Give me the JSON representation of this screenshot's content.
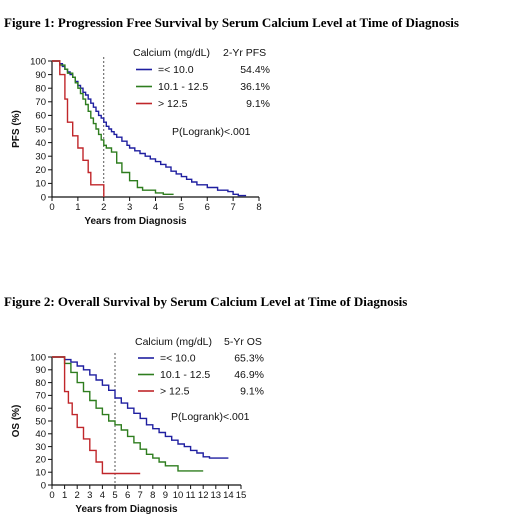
{
  "chart_data": [
    {
      "type": "line",
      "title": "Figure 1: Progression Free Survival by Serum Calcium Level at Time of Diagnosis",
      "xlabel": "Years from Diagnosis",
      "ylabel": "PFS (%)",
      "xlim": [
        0,
        8
      ],
      "ylim": [
        0,
        100
      ],
      "xticks": [
        "0",
        "1",
        "2",
        "3",
        "4",
        "5",
        "6",
        "7",
        "8"
      ],
      "yticks": [
        "0",
        "10",
        "20",
        "30",
        "40",
        "50",
        "60",
        "70",
        "80",
        "90",
        "100"
      ],
      "reference_line_x": 2,
      "legend_header": "Calcium (mg/dL)",
      "legend_value_header": "2-Yr PFS",
      "annotation": "P(Logrank)<.001",
      "series": [
        {
          "name": "=< 10.0",
          "stat": "54.4%",
          "color": "#1f1fa0",
          "x": [
            0,
            0.3,
            0.4,
            0.5,
            0.6,
            0.7,
            0.8,
            0.9,
            1.0,
            1.1,
            1.2,
            1.3,
            1.4,
            1.5,
            1.6,
            1.7,
            1.8,
            1.9,
            2.0,
            2.1,
            2.2,
            2.3,
            2.4,
            2.5,
            2.7,
            2.9,
            3.0,
            3.2,
            3.4,
            3.6,
            3.8,
            4.0,
            4.2,
            4.4,
            4.6,
            4.8,
            5.0,
            5.2,
            5.4,
            5.6,
            6.0,
            6.4,
            6.8,
            7.0,
            7.2,
            7.5
          ],
          "y": [
            100,
            98,
            96,
            94,
            92,
            90,
            88,
            85,
            82,
            80,
            77,
            75,
            72,
            69,
            66,
            63,
            60,
            58,
            55,
            52,
            50,
            48,
            46,
            44,
            41,
            38,
            36,
            34,
            32,
            30,
            28,
            26,
            24,
            22,
            19,
            17,
            15,
            13,
            11,
            9,
            7,
            5,
            4,
            2,
            1,
            1
          ]
        },
        {
          "name": "10.1 - 12.5",
          "stat": "36.1%",
          "color": "#2e7d1e",
          "x": [
            0,
            0.3,
            0.5,
            0.6,
            0.8,
            0.9,
            1.0,
            1.1,
            1.2,
            1.3,
            1.4,
            1.5,
            1.6,
            1.7,
            1.8,
            1.9,
            2.0,
            2.1,
            2.3,
            2.5,
            2.7,
            3.0,
            3.3,
            3.5,
            4.0,
            4.3,
            4.7
          ],
          "y": [
            100,
            97,
            94,
            91,
            88,
            84,
            80,
            76,
            72,
            68,
            63,
            58,
            54,
            50,
            46,
            42,
            38,
            36,
            33,
            25,
            18,
            12,
            7,
            5,
            3,
            2,
            2
          ]
        },
        {
          "name": "> 12.5",
          "stat": "9.1%",
          "color": "#c0262a",
          "x": [
            0,
            0.3,
            0.5,
            0.6,
            0.8,
            1.0,
            1.2,
            1.4,
            1.5,
            1.7,
            2.0
          ],
          "y": [
            100,
            90,
            72,
            55,
            45,
            36,
            27,
            18,
            9,
            9,
            0
          ]
        }
      ]
    },
    {
      "type": "line",
      "title": "Figure 2: Overall Survival by Serum Calcium Level at Time of Diagnosis",
      "xlabel": "Years from Diagnosis",
      "ylabel": "OS (%)",
      "xlim": [
        0,
        15
      ],
      "ylim": [
        0,
        100
      ],
      "xticks": [
        "0",
        "1",
        "2",
        "3",
        "4",
        "5",
        "6",
        "7",
        "8",
        "9",
        "10",
        "11",
        "12",
        "13",
        "14",
        "15"
      ],
      "yticks": [
        "0",
        "10",
        "20",
        "30",
        "40",
        "50",
        "60",
        "70",
        "80",
        "90",
        "100"
      ],
      "reference_line_x": 5,
      "legend_header": "Calcium (mg/dL)",
      "legend_value_header": "5-Yr OS",
      "annotation": "P(Logrank)<.001",
      "series": [
        {
          "name": "=< 10.0",
          "stat": "65.3%",
          "color": "#1f1fa0",
          "x": [
            0,
            1.0,
            1.5,
            2.0,
            2.5,
            3.0,
            3.5,
            4.0,
            4.5,
            5.0,
            5.5,
            6.0,
            6.5,
            7.0,
            7.5,
            8.0,
            8.5,
            9.0,
            9.5,
            10.0,
            10.5,
            11.0,
            11.5,
            12.0,
            12.5,
            13.0,
            14.0
          ],
          "y": [
            100,
            98,
            96,
            93,
            90,
            86,
            82,
            78,
            74,
            68,
            64,
            60,
            56,
            52,
            47,
            44,
            41,
            38,
            35,
            32,
            30,
            27,
            25,
            22,
            21,
            21,
            21
          ]
        },
        {
          "name": "10.1 - 12.5",
          "stat": "46.9%",
          "color": "#2e7d1e",
          "x": [
            0,
            1.0,
            1.5,
            2.0,
            2.5,
            3.0,
            3.5,
            4.0,
            4.5,
            5.0,
            5.5,
            6.0,
            6.5,
            7.0,
            7.5,
            8.0,
            8.5,
            9.0,
            10.0,
            11.0,
            12.0
          ],
          "y": [
            100,
            95,
            88,
            80,
            73,
            66,
            60,
            55,
            50,
            47,
            43,
            38,
            33,
            28,
            24,
            21,
            18,
            15,
            11,
            11,
            11
          ]
        },
        {
          "name": "> 12.5",
          "stat": "9.1%",
          "color": "#c0262a",
          "x": [
            0,
            1.0,
            1.3,
            1.6,
            2.0,
            2.5,
            3.0,
            3.5,
            4.0,
            7.0
          ],
          "y": [
            100,
            73,
            64,
            55,
            45,
            36,
            27,
            18,
            9,
            9
          ]
        }
      ]
    }
  ]
}
